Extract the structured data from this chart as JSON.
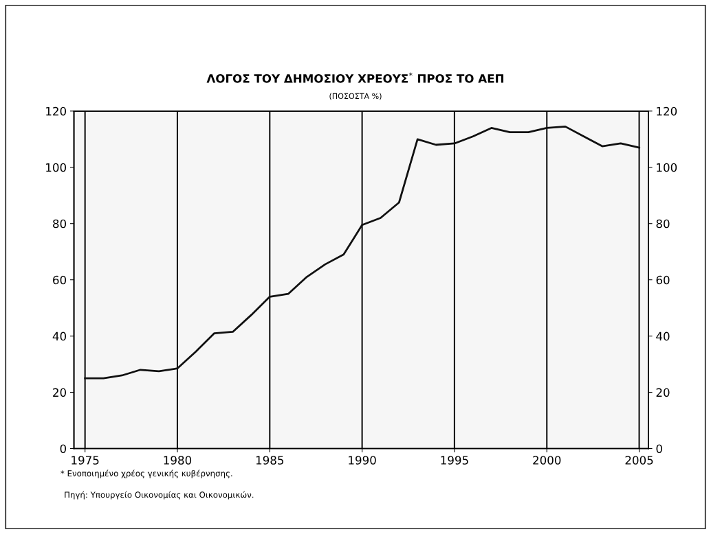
{
  "chart_data": {
    "type": "line",
    "title": "ΛΟΓΟΣ ΤΟΥ ΔΗΜΟΣΙΟΥ ΧΡΕΟΥΣ$^{*}$ ΠΡΟΣ ΤΟ ΑΕΠ",
    "subtitle": "(ΠΟΣΟΣΤΑ %)",
    "x": [
      1975,
      1976,
      1977,
      1978,
      1979,
      1980,
      1981,
      1982,
      1983,
      1984,
      1985,
      1986,
      1987,
      1988,
      1989,
      1990,
      1991,
      1992,
      1993,
      1994,
      1995,
      1996,
      1997,
      1998,
      1999,
      2000,
      2001,
      2002,
      2003,
      2004,
      2005
    ],
    "series": [
      {
        "color": "#111111",
        "values": [
          25,
          25,
          26,
          28,
          27.5,
          28.5,
          34.5,
          41,
          41.5,
          47.5,
          54,
          55,
          61,
          65.5,
          69,
          79.5,
          82,
          87.5,
          110,
          108,
          108.5,
          111,
          114,
          112.5,
          112.5,
          114,
          114.5,
          111,
          107.5,
          108.5,
          107
        ]
      }
    ],
    "xlim": [
      1974.4,
      2005.5
    ],
    "xticks": [
      1975,
      1980,
      1985,
      1990,
      1995,
      2000,
      2005
    ],
    "ylim": [
      0,
      120
    ],
    "yticks": [
      0,
      20,
      40,
      60,
      80,
      100,
      120
    ],
    "y2lim": [
      0,
      120
    ],
    "y2ticks": [
      0,
      20,
      40,
      60,
      80,
      100,
      120
    ],
    "grid": "x",
    "marker": "none",
    "line_style": "solid",
    "annotations": [
      "* Ενοποιημένο χρέος γενικής κυβέρνησης.",
      "Πηγή: Υπουργείο Οικονομίας και Οικονομικών."
    ]
  }
}
